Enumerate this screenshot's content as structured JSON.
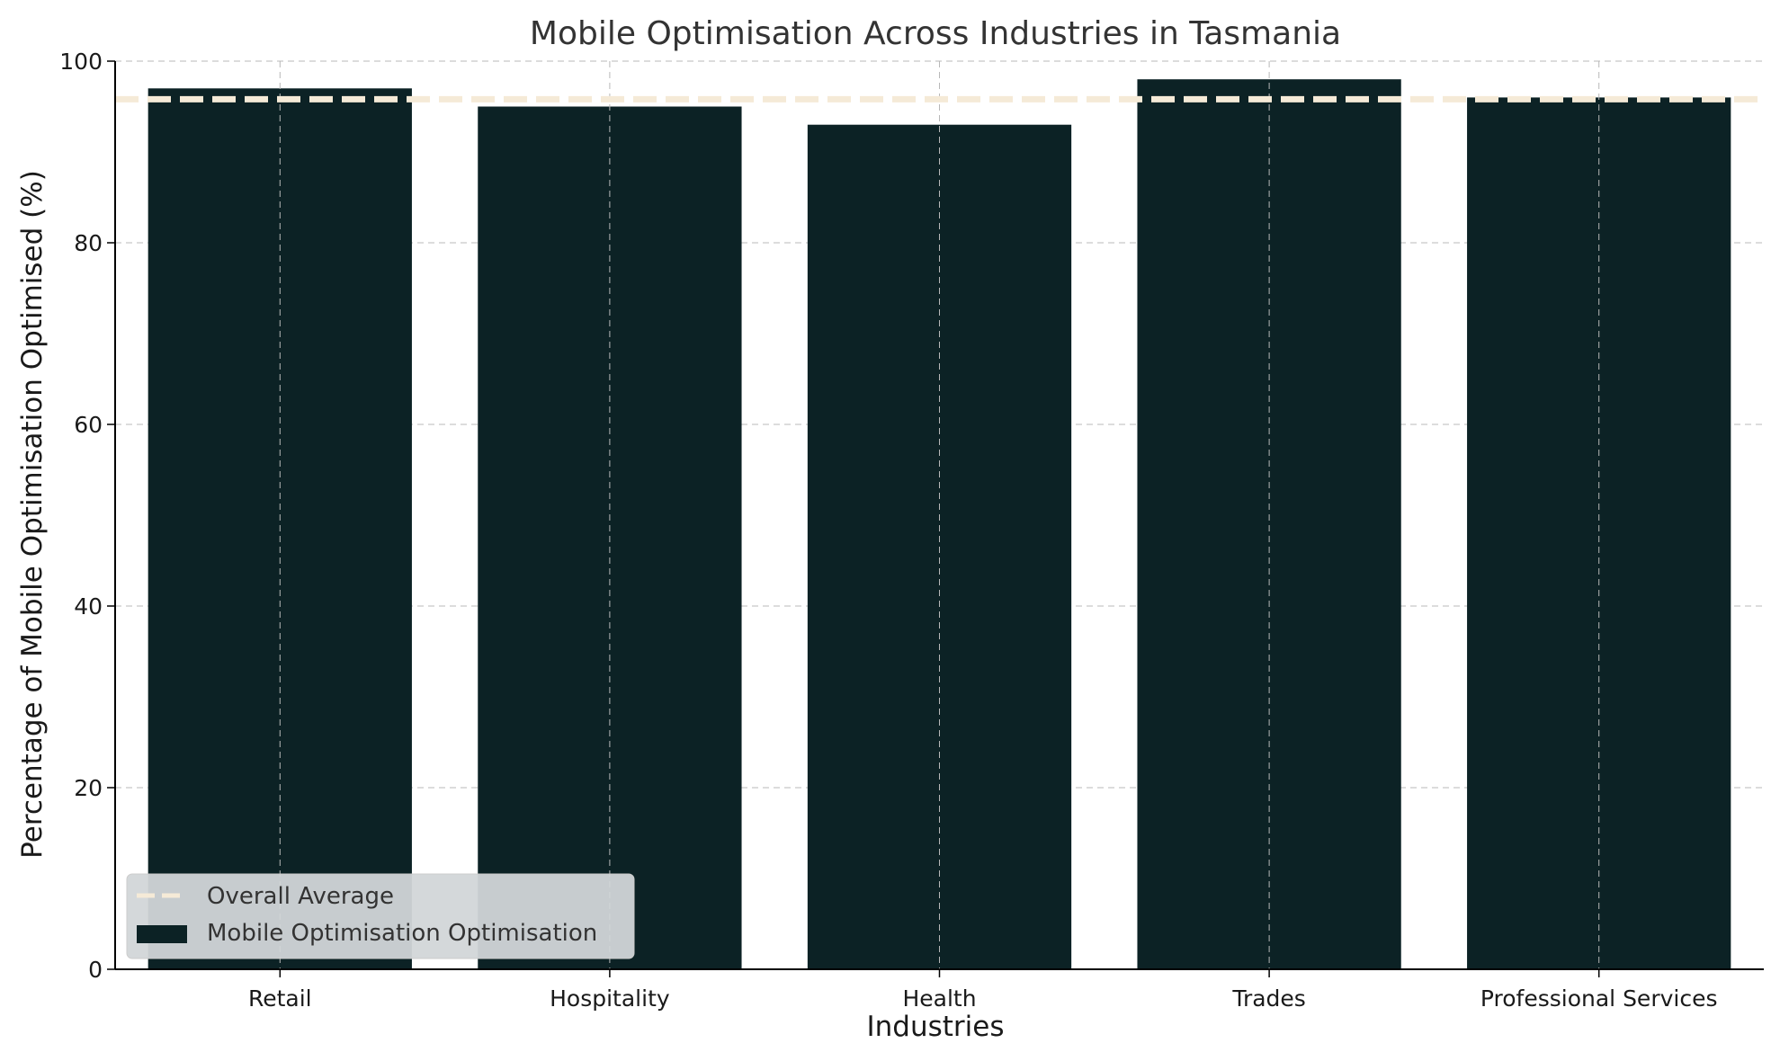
{
  "chart_data": {
    "type": "bar",
    "title": "Mobile Optimisation Across Industries in Tasmania",
    "xlabel": "Industries",
    "ylabel": "Percentage of Mobile Optimisation Optimised (%)",
    "categories": [
      "Retail",
      "Hospitality",
      "Health",
      "Trades",
      "Professional Services"
    ],
    "series": [
      {
        "name": "Mobile Optimisation Optimisation",
        "values": [
          97,
          95,
          93,
          98,
          96
        ]
      }
    ],
    "reference_line": {
      "name": "Overall Average",
      "value": 95.8
    },
    "ylim": [
      0,
      100
    ],
    "yticks": [
      "0",
      "20",
      "40",
      "60",
      "80",
      "100"
    ],
    "grid": true,
    "legend_position": "lower-left",
    "colors": {
      "bar": "#0c2225",
      "average_line": "#f5ead7",
      "grid": "#b8b8b8",
      "axis": "#000000"
    }
  }
}
